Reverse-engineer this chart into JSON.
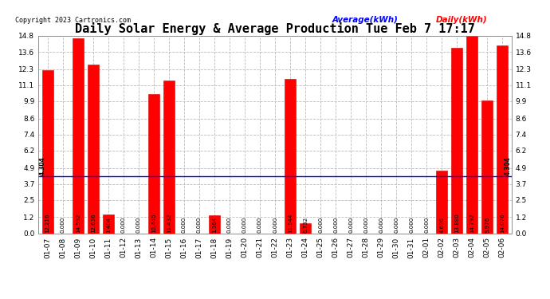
{
  "title": "Daily Solar Energy & Average Production Tue Feb 7 17:17",
  "copyright": "Copyright 2023 Cartronics.com",
  "legend_avg": "Average(kWh)",
  "legend_daily": "Daily(kWh)",
  "average_line": 4.304,
  "average_label": "4.304",
  "categories": [
    "01-07",
    "01-08",
    "01-09",
    "01-10",
    "01-11",
    "01-12",
    "01-13",
    "01-14",
    "01-15",
    "01-16",
    "01-17",
    "01-18",
    "01-19",
    "01-20",
    "01-21",
    "01-22",
    "01-23",
    "01-24",
    "01-25",
    "01-26",
    "01-27",
    "01-28",
    "01-29",
    "01-30",
    "01-31",
    "02-01",
    "02-02",
    "02-03",
    "02-04",
    "02-05",
    "02-06"
  ],
  "values": [
    12.216,
    0.0,
    14.592,
    12.636,
    1.404,
    0.0,
    0.0,
    10.44,
    11.432,
    0.0,
    0.0,
    1.364,
    0.0,
    0.0,
    0.0,
    0.0,
    11.544,
    0.732,
    0.0,
    0.0,
    0.0,
    0.0,
    0.0,
    0.0,
    0.0,
    0.0,
    4.696,
    13.88,
    14.792,
    9.976,
    14.076
  ],
  "bar_color": "#FF0000",
  "bar_edge_color": "#CC0000",
  "bg_color": "#FFFFFF",
  "grid_color": "#BBBBBB",
  "avg_line_color": "#0000FF",
  "ylim": [
    0.0,
    14.8
  ],
  "yticks": [
    0.0,
    1.2,
    2.5,
    3.7,
    4.9,
    6.2,
    7.4,
    8.6,
    9.9,
    11.1,
    12.3,
    13.6,
    14.8
  ],
  "title_fontsize": 11,
  "tick_fontsize": 6.5,
  "bar_label_fontsize": 5.0,
  "avg_label_fontsize": 5.5,
  "copyright_fontsize": 6.0,
  "legend_fontsize": 7.5
}
